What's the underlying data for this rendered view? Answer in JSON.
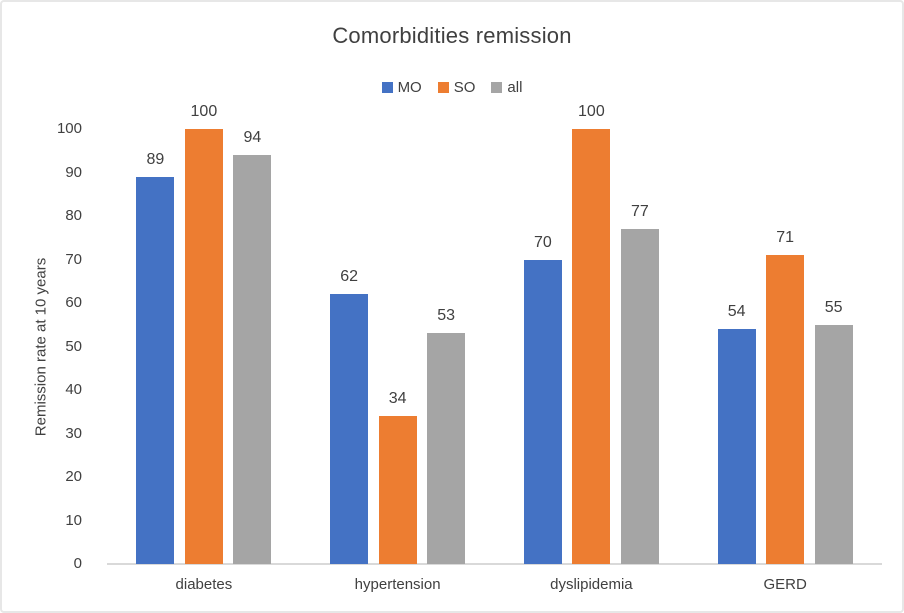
{
  "chart_data": {
    "type": "bar",
    "title": "Comorbidities remission",
    "xlabel": "",
    "ylabel": "Remission rate at 10 years",
    "categories": [
      "diabetes",
      "hypertension",
      "dyslipidemia",
      "GERD"
    ],
    "series": [
      {
        "name": "MO",
        "color": "#4472C4",
        "values": [
          89,
          62,
          70,
          54
        ]
      },
      {
        "name": "SO",
        "color": "#ED7D31",
        "values": [
          100,
          34,
          100,
          71
        ]
      },
      {
        "name": "all",
        "color": "#A5A5A5",
        "values": [
          94,
          53,
          77,
          55
        ]
      }
    ],
    "ylim": [
      0,
      100
    ],
    "ytick_step": 10,
    "yticks": [
      0,
      10,
      20,
      30,
      40,
      50,
      60,
      70,
      80,
      90,
      100
    ],
    "grid": false,
    "legend_position": "top",
    "data_labels": true,
    "colors": {
      "text": "#404040",
      "axis_line": "#D9D9D9",
      "frame_border": "#E7E7E7",
      "background": "#FFFFFF"
    }
  }
}
